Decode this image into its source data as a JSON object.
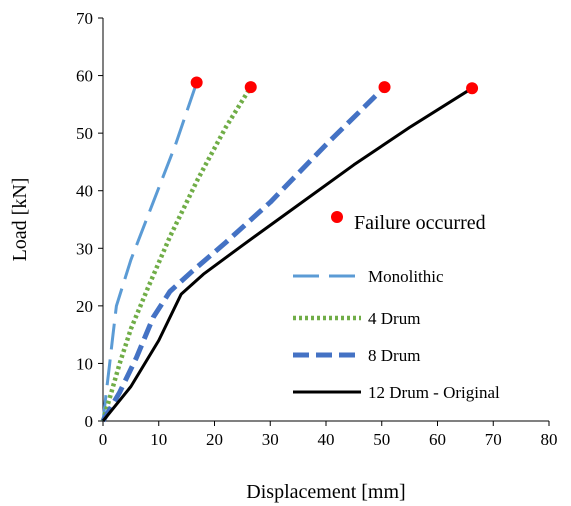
{
  "chart_data": {
    "type": "line",
    "xlabel": "Displacement [mm]",
    "ylabel": "Load [kN]",
    "xlim": [
      0,
      80
    ],
    "ylim": [
      0,
      70
    ],
    "xticks": [
      0,
      10,
      20,
      30,
      40,
      50,
      60,
      70,
      80
    ],
    "yticks": [
      0,
      10,
      20,
      30,
      40,
      50,
      60,
      70
    ],
    "grid": false,
    "legend_position": "right",
    "series": [
      {
        "name": "Monolithic",
        "style": "long-dash",
        "color": "#5B9BD5",
        "x": [
          0,
          0.6,
          1.2,
          1.8,
          2.4,
          5,
          9,
          13,
          16.8
        ],
        "y": [
          0,
          5,
          10,
          15,
          20,
          28,
          38,
          48,
          58.8
        ]
      },
      {
        "name": "4 Drum",
        "style": "dotted",
        "color": "#70AD47",
        "x": [
          0,
          1.5,
          3,
          5,
          8,
          12,
          17,
          22,
          26.5
        ],
        "y": [
          0,
          5,
          10,
          16,
          23,
          32,
          42,
          51,
          58
        ]
      },
      {
        "name": "8 Drum",
        "style": "dashed",
        "color": "#4472C4",
        "x": [
          0,
          3,
          6,
          9,
          12,
          16,
          22,
          30,
          40,
          50.5
        ],
        "y": [
          0,
          5,
          11,
          18,
          22.5,
          26,
          31,
          38,
          48,
          58
        ]
      },
      {
        "name": "12 Drum - Original",
        "style": "solid",
        "color": "#000000",
        "x": [
          0,
          5,
          10,
          14,
          18,
          25,
          35,
          45,
          55,
          66.2
        ],
        "y": [
          0,
          6,
          14,
          22,
          25.5,
          30.5,
          37.5,
          44.5,
          51,
          57.8
        ]
      }
    ],
    "failure_points": {
      "label": "Failure occurred",
      "color": "#FF0000",
      "points": [
        {
          "x": 16.8,
          "y": 58.8
        },
        {
          "x": 26.5,
          "y": 58
        },
        {
          "x": 50.5,
          "y": 58
        },
        {
          "x": 66.2,
          "y": 57.8
        }
      ]
    }
  }
}
